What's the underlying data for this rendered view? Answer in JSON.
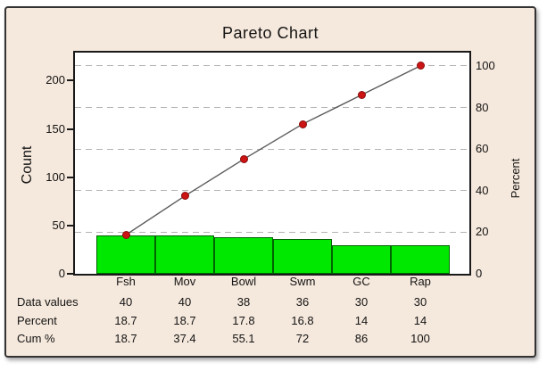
{
  "title": "Pareto Chart",
  "left_axis": {
    "label": "Count",
    "ticks": [
      0,
      50,
      100,
      150,
      200
    ],
    "max": 229
  },
  "right_axis": {
    "label": "Percent",
    "ticks": [
      0,
      20,
      40,
      60,
      80,
      100
    ],
    "max": 106.4
  },
  "chart_data": {
    "type": "bar",
    "subtype": "pareto",
    "title": "Pareto Chart",
    "categories": [
      "Fsh",
      "Mov",
      "Bowl",
      "Swm",
      "GC",
      "Rap"
    ],
    "series": [
      {
        "name": "Data values",
        "type": "bar",
        "axis": "count",
        "values": [
          40,
          40,
          38,
          36,
          30,
          30
        ]
      },
      {
        "name": "Percent",
        "type": "table-only",
        "values": [
          18.7,
          18.7,
          17.8,
          16.8,
          14,
          14
        ]
      },
      {
        "name": "Cum %",
        "type": "line",
        "axis": "percent",
        "values": [
          18.7,
          37.4,
          55.1,
          72,
          86,
          100
        ]
      }
    ],
    "total_count": 214,
    "xlabel": "",
    "ylabel_left": "Count",
    "ylabel_right": "Percent",
    "ylim_left": [
      0,
      229
    ],
    "ylim_right": [
      0,
      106.4
    ],
    "grid": "horizontal dashed lines at right-axis ticks 20,40,60,80,100",
    "legend": "none"
  },
  "table": {
    "rows": [
      {
        "label": "Data values",
        "values": [
          "40",
          "40",
          "38",
          "36",
          "30",
          "30"
        ]
      },
      {
        "label": "Percent",
        "values": [
          "18.7",
          "18.7",
          "17.8",
          "16.8",
          "14",
          "14"
        ]
      },
      {
        "label": "Cum %",
        "values": [
          "18.7",
          "37.4",
          "55.1",
          "72",
          "86",
          "100"
        ]
      }
    ]
  },
  "colors": {
    "panel_background": "#f5e8dc",
    "panel_border": "#333333",
    "plot_background": "#ffffff",
    "plot_border": "#1a1a1a",
    "bar_fill": "#00e800",
    "bar_border": "#006400",
    "point_fill": "#cc1414",
    "line": "#5a5a5a",
    "gridline": "#b3b3b3",
    "text": "#141414"
  }
}
